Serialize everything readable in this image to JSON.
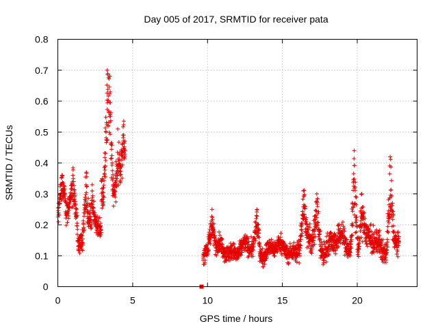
{
  "chart_data": {
    "type": "scatter",
    "title": "Day 005 of 2017, SRMTID for receiver pata",
    "xlabel": "GPS time / hours",
    "ylabel": "SRMTID / TECUs",
    "xlim": [
      0,
      24
    ],
    "ylim": [
      0,
      0.8
    ],
    "xticks": [
      0,
      5,
      10,
      15,
      20
    ],
    "xtick_labels": [
      "0",
      "5",
      "10",
      "15",
      "20"
    ],
    "yticks": [
      0,
      0.1,
      0.2,
      0.3,
      0.4,
      0.5,
      0.6,
      0.7,
      0.8
    ],
    "ytick_labels": [
      "0",
      "0.1",
      "0.2",
      "0.3",
      "0.4",
      "0.5",
      "0.6",
      "0.7",
      "0.8"
    ],
    "grid": true,
    "marker": "plus",
    "color": "#e60000",
    "series": [
      {
        "name": "SRMTID",
        "segments": [
          {
            "x_range": [
              0.0,
              1.3
            ],
            "level": 0.24,
            "spread": 0.07,
            "peaks": [
              [
                0.3,
                0.36
              ],
              [
                1.0,
                0.36
              ]
            ]
          },
          {
            "x_range": [
              1.3,
              2.9
            ],
            "level": 0.17,
            "spread": 0.06,
            "peaks": [
              [
                1.9,
                0.37
              ],
              [
                2.3,
                0.33
              ]
            ]
          },
          {
            "x_range": [
              2.9,
              4.5
            ],
            "level": 0.31,
            "spread": 0.09,
            "peaks": [
              [
                3.3,
                0.7
              ],
              [
                3.5,
                0.63
              ],
              [
                4.0,
                0.51
              ],
              [
                4.4,
                0.49
              ]
            ]
          },
          {
            "x_range": [
              9.7,
              16.0
            ],
            "level": 0.12,
            "spread": 0.05,
            "peaks": [
              [
                10.3,
                0.25
              ],
              [
                13.3,
                0.25
              ]
            ]
          },
          {
            "x_range": [
              16.0,
              22.8
            ],
            "level": 0.14,
            "spread": 0.07,
            "peaks": [
              [
                16.4,
                0.31
              ],
              [
                17.3,
                0.3
              ],
              [
                19.8,
                0.44
              ],
              [
                20.3,
                0.3
              ],
              [
                22.2,
                0.42
              ]
            ]
          }
        ],
        "extra_points": [
          [
            9.6,
            0.0
          ]
        ]
      }
    ]
  }
}
